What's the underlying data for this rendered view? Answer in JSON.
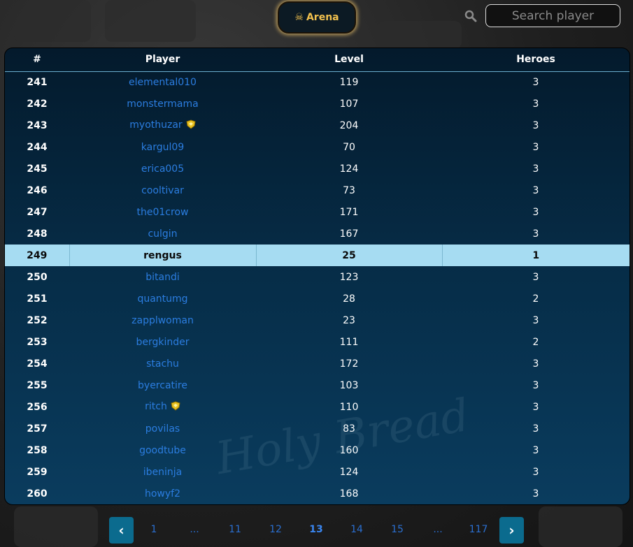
{
  "header": {
    "arena_label": "Arena",
    "arena_icon": "skull-crossbones-icon",
    "search_placeholder": "Search player",
    "search_value": ""
  },
  "table": {
    "columns": [
      "#",
      "Player",
      "Level",
      "Heroes"
    ],
    "highlight_color": "#a6dcf2",
    "rows": [
      {
        "rank": "241",
        "player": "elemental010",
        "level": "119",
        "heroes": "3"
      },
      {
        "rank": "242",
        "player": "monstermama",
        "level": "107",
        "heroes": "3"
      },
      {
        "rank": "243",
        "player": "myothuzar",
        "level": "204",
        "heroes": "3",
        "badge": true
      },
      {
        "rank": "244",
        "player": "kargul09",
        "level": "70",
        "heroes": "3"
      },
      {
        "rank": "245",
        "player": "erica005",
        "level": "124",
        "heroes": "3"
      },
      {
        "rank": "246",
        "player": "cooltivar",
        "level": "73",
        "heroes": "3"
      },
      {
        "rank": "247",
        "player": "the01crow",
        "level": "171",
        "heroes": "3"
      },
      {
        "rank": "248",
        "player": "culgin",
        "level": "167",
        "heroes": "3"
      },
      {
        "rank": "249",
        "player": "rengus",
        "level": "25",
        "heroes": "1",
        "current_user": true
      },
      {
        "rank": "250",
        "player": "bitandi",
        "level": "123",
        "heroes": "3"
      },
      {
        "rank": "251",
        "player": "quantumg",
        "level": "28",
        "heroes": "2"
      },
      {
        "rank": "252",
        "player": "zapplwoman",
        "level": "23",
        "heroes": "3"
      },
      {
        "rank": "253",
        "player": "bergkinder",
        "level": "111",
        "heroes": "2"
      },
      {
        "rank": "254",
        "player": "stachu",
        "level": "172",
        "heroes": "3"
      },
      {
        "rank": "255",
        "player": "byercatire",
        "level": "103",
        "heroes": "3"
      },
      {
        "rank": "256",
        "player": "ritch",
        "level": "110",
        "heroes": "3",
        "badge": true
      },
      {
        "rank": "257",
        "player": "povilas",
        "level": "83",
        "heroes": "3"
      },
      {
        "rank": "258",
        "player": "goodtube",
        "level": "160",
        "heroes": "3"
      },
      {
        "rank": "259",
        "player": "ibeninja",
        "level": "124",
        "heroes": "3"
      },
      {
        "rank": "260",
        "player": "howyf2",
        "level": "168",
        "heroes": "3"
      }
    ]
  },
  "watermark": "Holy Bread",
  "pagination": {
    "prev": "‹",
    "next": "›",
    "pages": [
      "1",
      "...",
      "11",
      "12",
      "13",
      "14",
      "15",
      "...",
      "117"
    ],
    "current": "13"
  }
}
